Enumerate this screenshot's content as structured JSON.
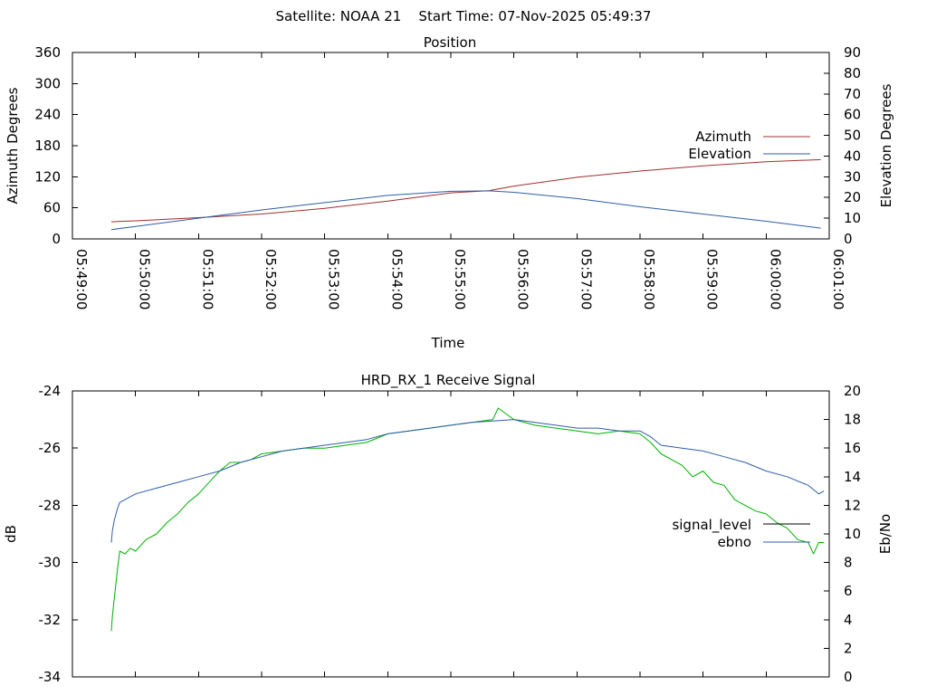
{
  "page_title": "Satellite: NOAA 21    Start Time: 07-Nov-2025 05:49:37",
  "colors": {
    "red": "#a0302e",
    "blue": "#2e5ea8",
    "green": "#00b000",
    "black": "#000000"
  },
  "chart_data": [
    {
      "type": "line",
      "title": "Position",
      "xlabel": "Time",
      "ylabel": "Azimuth Degrees",
      "y2label": "Elevation Degrees",
      "xlim": [
        "05:49:00",
        "06:01:00"
      ],
      "x_ticks": [
        "05:49:00",
        "05:50:00",
        "05:51:00",
        "05:52:00",
        "05:53:00",
        "05:54:00",
        "05:55:00",
        "05:56:00",
        "05:57:00",
        "05:58:00",
        "05:59:00",
        "06:00:00",
        "06:01:00"
      ],
      "ylim": [
        0,
        360
      ],
      "y_ticks": [
        "0",
        "60",
        "120",
        "180",
        "240",
        "300",
        "360"
      ],
      "y2lim": [
        0,
        90
      ],
      "y2_ticks": [
        "0",
        "10",
        "20",
        "30",
        "40",
        "50",
        "60",
        "70",
        "80",
        "90"
      ],
      "legend_placement": "right",
      "series": [
        {
          "name": "Azimuth",
          "axis": "y",
          "color": "#a0302e",
          "x": [
            "05:49:37",
            "05:50:00",
            "05:51:00",
            "05:52:00",
            "05:53:00",
            "05:54:00",
            "05:55:00",
            "05:55:36",
            "05:56:00",
            "05:57:00",
            "05:58:00",
            "05:59:00",
            "06:00:00",
            "06:00:52"
          ],
          "values": [
            33,
            35,
            41,
            48,
            59,
            73,
            89,
            93,
            102,
            119,
            131,
            141,
            149,
            153
          ]
        },
        {
          "name": "Elevation",
          "axis": "y2",
          "color": "#2e5ea8",
          "x": [
            "05:49:37",
            "05:50:00",
            "05:51:00",
            "05:52:00",
            "05:53:00",
            "05:54:00",
            "05:55:00",
            "05:55:36",
            "05:56:00",
            "05:57:00",
            "05:58:00",
            "05:59:00",
            "06:00:00",
            "06:00:52"
          ],
          "values": [
            4.5,
            6,
            10,
            14,
            17.5,
            21,
            23,
            23.2,
            22.5,
            19.5,
            15.5,
            12,
            8.5,
            5.2
          ]
        }
      ]
    },
    {
      "type": "line",
      "title": "HRD_RX_1 Receive Signal",
      "xlabel": "",
      "ylabel": "dB",
      "y2label": "Eb/No",
      "xlim": [
        "05:49:00",
        "06:01:00"
      ],
      "ylim": [
        -34,
        -24
      ],
      "y_ticks": [
        "-34",
        "-32",
        "-30",
        "-28",
        "-26",
        "-24"
      ],
      "y2lim": [
        0,
        20
      ],
      "y2_ticks": [
        "0",
        "2",
        "4",
        "6",
        "8",
        "10",
        "12",
        "14",
        "16",
        "18",
        "20"
      ],
      "legend_placement": "right",
      "series": [
        {
          "name": "signal_level",
          "axis": "y",
          "color": "#00b000",
          "x": [
            "05:49:37",
            "05:49:38",
            "05:49:40",
            "05:49:43",
            "05:49:45",
            "05:49:50",
            "05:49:55",
            "05:50:00",
            "05:50:10",
            "05:50:20",
            "05:50:30",
            "05:50:40",
            "05:50:50",
            "05:51:00",
            "05:51:10",
            "05:51:20",
            "05:51:30",
            "05:51:40",
            "05:51:50",
            "05:52:00",
            "05:52:20",
            "05:52:40",
            "05:53:00",
            "05:53:20",
            "05:53:40",
            "05:54:00",
            "05:54:20",
            "05:54:40",
            "05:55:00",
            "05:55:20",
            "05:55:40",
            "05:55:45",
            "05:56:00",
            "05:56:20",
            "05:56:40",
            "05:57:00",
            "05:57:20",
            "05:57:40",
            "05:58:00",
            "05:58:10",
            "05:58:20",
            "05:58:30",
            "05:58:40",
            "05:58:50",
            "05:59:00",
            "05:59:10",
            "05:59:20",
            "05:59:30",
            "05:59:40",
            "05:59:50",
            "06:00:00",
            "06:00:10",
            "06:00:20",
            "06:00:30",
            "06:00:40",
            "06:00:45",
            "06:00:50",
            "06:00:55"
          ],
          "values": [
            -32.4,
            -31.9,
            -31.2,
            -30.2,
            -29.6,
            -29.7,
            -29.5,
            -29.6,
            -29.2,
            -29.0,
            -28.6,
            -28.3,
            -27.9,
            -27.6,
            -27.2,
            -26.8,
            -26.5,
            -26.5,
            -26.4,
            -26.2,
            -26.1,
            -26.0,
            -26.0,
            -25.9,
            -25.8,
            -25.5,
            -25.4,
            -25.3,
            -25.2,
            -25.1,
            -25.0,
            -24.6,
            -25.0,
            -25.2,
            -25.3,
            -25.4,
            -25.5,
            -25.4,
            -25.5,
            -25.8,
            -26.2,
            -26.4,
            -26.6,
            -27.0,
            -26.8,
            -27.2,
            -27.3,
            -27.8,
            -28.0,
            -28.2,
            -28.3,
            -28.6,
            -28.8,
            -29.2,
            -29.3,
            -29.7,
            -29.3,
            -29.3
          ]
        },
        {
          "name": "ebno",
          "axis": "y2",
          "color": "#2e5ea8",
          "x": [
            "05:49:37",
            "05:49:38",
            "05:49:40",
            "05:49:43",
            "05:49:45",
            "05:49:50",
            "05:49:55",
            "05:50:00",
            "05:50:20",
            "05:50:40",
            "05:51:00",
            "05:51:20",
            "05:51:40",
            "05:52:00",
            "05:52:20",
            "05:52:40",
            "05:53:00",
            "05:53:20",
            "05:53:40",
            "05:54:00",
            "05:54:20",
            "05:54:40",
            "05:55:00",
            "05:55:20",
            "05:55:40",
            "05:56:00",
            "05:56:20",
            "05:56:40",
            "05:57:00",
            "05:57:20",
            "05:57:40",
            "05:58:00",
            "05:58:10",
            "05:58:20",
            "05:58:40",
            "05:59:00",
            "05:59:20",
            "05:59:40",
            "06:00:00",
            "06:00:20",
            "06:00:40",
            "06:00:50",
            "06:00:55"
          ],
          "values": [
            9.4,
            10.2,
            11.0,
            11.8,
            12.2,
            12.4,
            12.6,
            12.8,
            13.2,
            13.6,
            14.0,
            14.4,
            15.0,
            15.4,
            15.8,
            16.0,
            16.2,
            16.4,
            16.6,
            17.0,
            17.2,
            17.4,
            17.6,
            17.8,
            17.9,
            18.0,
            17.8,
            17.6,
            17.4,
            17.4,
            17.2,
            17.2,
            16.8,
            16.2,
            16.0,
            15.8,
            15.4,
            15.0,
            14.4,
            14.0,
            13.4,
            12.8,
            13.0
          ]
        }
      ]
    }
  ]
}
